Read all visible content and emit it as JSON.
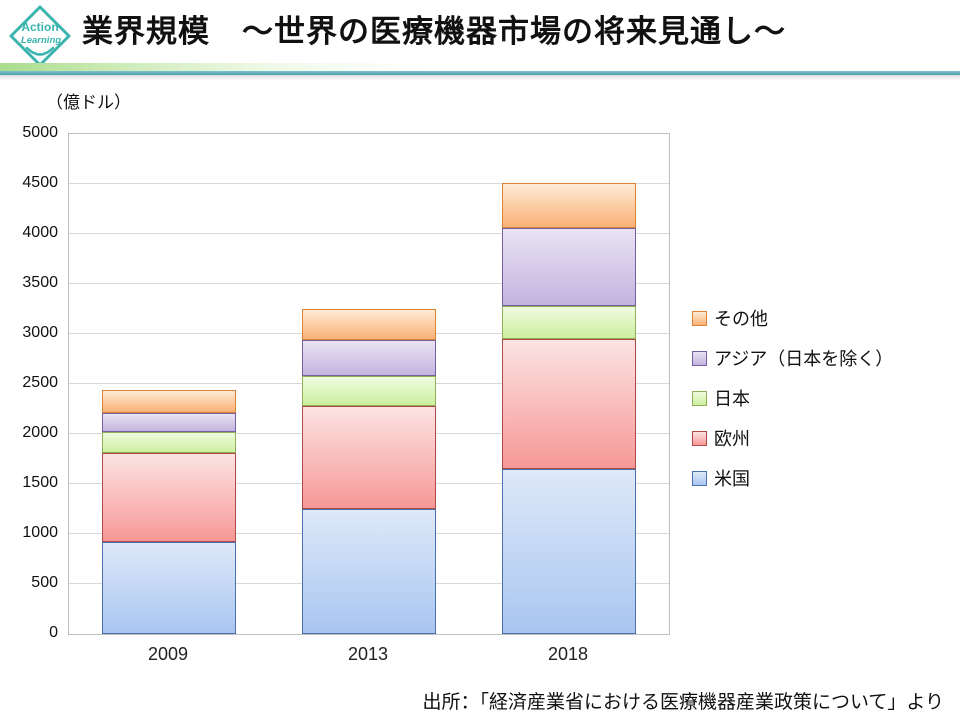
{
  "logo": {
    "line1": "Action",
    "line2": "Learning",
    "color": "#3BB4AE"
  },
  "header": {
    "title": "業界規模　～世界の医療機器市場の将来見通し～"
  },
  "chart_data": {
    "type": "bar",
    "stacked": true,
    "title": "世界の医療機器市場の将来見通し",
    "unit_label": "（億ドル）",
    "xlabel": "",
    "ylabel": "億ドル",
    "categories": [
      "2009",
      "2013",
      "2018"
    ],
    "series": [
      {
        "name": "米国",
        "values": [
          920,
          1250,
          1650
        ],
        "fill_top": "#DEE9F9",
        "fill_bottom": "#A9C5F0",
        "border": "#4C6FAF"
      },
      {
        "name": "欧州",
        "values": [
          890,
          1030,
          1300
        ],
        "fill_top": "#FBE3E2",
        "fill_bottom": "#F69897",
        "border": "#B04A48"
      },
      {
        "name": "日本",
        "values": [
          210,
          300,
          330
        ],
        "fill_top": "#F0FBDF",
        "fill_bottom": "#CDEFA0",
        "border": "#8FAF54"
      },
      {
        "name": "アジア（日本を除く）",
        "values": [
          190,
          360,
          780
        ],
        "fill_top": "#E9E3F3",
        "fill_bottom": "#C3B4DF",
        "border": "#7460A0"
      },
      {
        "name": "その他",
        "values": [
          230,
          310,
          450
        ],
        "fill_top": "#FDEBD5",
        "fill_bottom": "#FAB175",
        "border": "#DD8137"
      }
    ],
    "totals": {
      "2009": 2440,
      "2013": 3250,
      "2018": 4510
    },
    "ylim": [
      0,
      5000
    ],
    "y_ticks": [
      0,
      500,
      1000,
      1500,
      2000,
      2500,
      3000,
      3500,
      4000,
      4500,
      5000
    ],
    "grid": true,
    "legend_position": "right",
    "legend_order_top_to_bottom": [
      "その他",
      "アジア（日本を除く）",
      "日本",
      "欧州",
      "米国"
    ]
  },
  "source": {
    "text": "出所：「経済産業省における医療機器産業政策について」より"
  }
}
